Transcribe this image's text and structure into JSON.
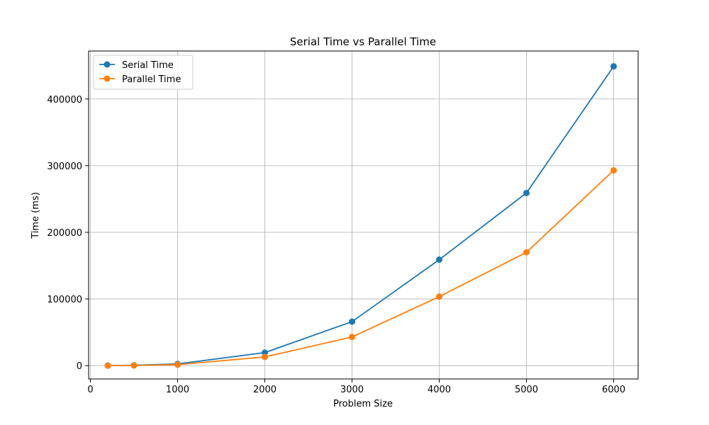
{
  "chart_data": {
    "type": "line",
    "title": "Serial Time vs Parallel Time",
    "xlabel": "Problem Size",
    "ylabel": "Time (ms)",
    "xlim": [
      -20,
      6280
    ],
    "ylim": [
      -20000,
      472000
    ],
    "xticks": [
      0,
      1000,
      2000,
      3000,
      4000,
      5000,
      6000
    ],
    "yticks": [
      0,
      100000,
      200000,
      300000,
      400000
    ],
    "grid": true,
    "legend_position": "top-left",
    "x": [
      200,
      500,
      1000,
      2000,
      3000,
      4000,
      5000,
      6000
    ],
    "series": [
      {
        "name": "Serial Time",
        "color": "#1f77b4",
        "values": [
          100,
          500,
          2500,
          19500,
          66000,
          159000,
          259000,
          449000
        ]
      },
      {
        "name": "Parallel Time",
        "color": "#ff7f0e",
        "values": [
          80,
          300,
          1500,
          13000,
          43000,
          103500,
          170000,
          293000
        ]
      }
    ]
  }
}
